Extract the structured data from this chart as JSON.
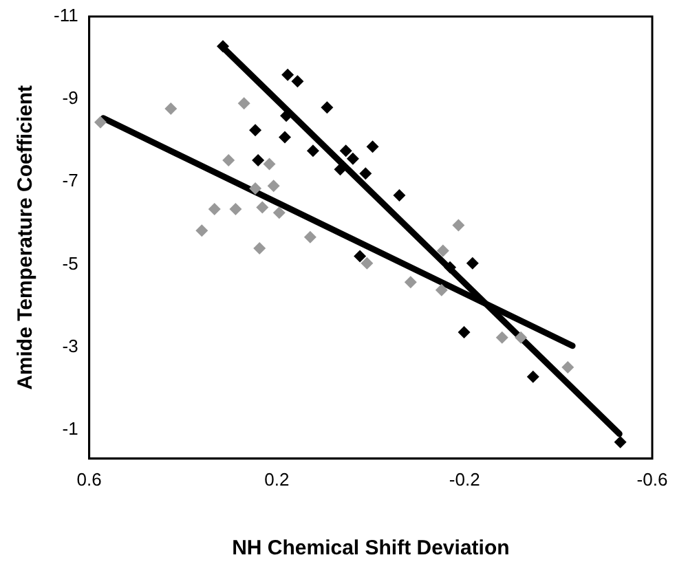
{
  "chart_data": {
    "type": "scatter",
    "xlabel": "NH Chemical Shift Deviation",
    "ylabel": "Amide Temperature Coefficient",
    "xlim": [
      0.6,
      -0.6
    ],
    "xticks": [
      0.6,
      0.2,
      -0.2,
      -0.6
    ],
    "ylim": [
      -0.3,
      -11
    ],
    "yticks": [
      -11,
      -9,
      -7,
      -5,
      -3,
      -1
    ],
    "grid": false,
    "legend": false,
    "marker": "diamond",
    "series": [
      {
        "type": "scatter",
        "color": "#000000",
        "x": [
          0.315,
          0.177,
          0.156,
          0.246,
          0.18,
          0.093,
          0.183,
          0.24,
          0.123,
          0.053,
          0.038,
          -0.004,
          0.065,
          0.011,
          0.023,
          -0.061,
          -0.169,
          -0.217,
          -0.199,
          -0.346,
          -0.532
        ],
        "values": [
          -10.28,
          -9.59,
          -9.43,
          -8.25,
          -8.6,
          -8.8,
          -8.08,
          -7.52,
          -7.75,
          -7.75,
          -7.56,
          -7.85,
          -7.3,
          -7.2,
          -5.2,
          -6.67,
          -4.93,
          -5.03,
          -3.36,
          -2.28,
          -0.7
        ]
      },
      {
        "type": "scatter",
        "color": "#999999",
        "x": [
          0.576,
          0.426,
          0.27,
          0.303,
          0.216,
          0.246,
          0.207,
          0.333,
          0.288,
          0.231,
          0.195,
          0.36,
          0.237,
          0.129,
          0.008,
          -0.187,
          -0.154,
          -0.085,
          -0.151,
          -0.28,
          -0.32,
          -0.42
        ],
        "values": [
          -8.44,
          -8.77,
          -8.9,
          -7.52,
          -7.43,
          -6.84,
          -6.9,
          -6.34,
          -6.34,
          -6.38,
          -6.25,
          -5.82,
          -5.39,
          -5.66,
          -5.03,
          -5.95,
          -5.33,
          -4.57,
          -4.38,
          -3.23,
          -3.23,
          -2.51
        ]
      },
      {
        "type": "line",
        "color": "#000000",
        "marker": "none",
        "x": [
          0.315,
          -0.53
        ],
        "values": [
          -10.25,
          -0.9
        ]
      },
      {
        "type": "line",
        "color": "#000000",
        "marker": "none",
        "x": [
          0.57,
          -0.43
        ],
        "values": [
          -8.54,
          -3.03
        ]
      }
    ]
  }
}
